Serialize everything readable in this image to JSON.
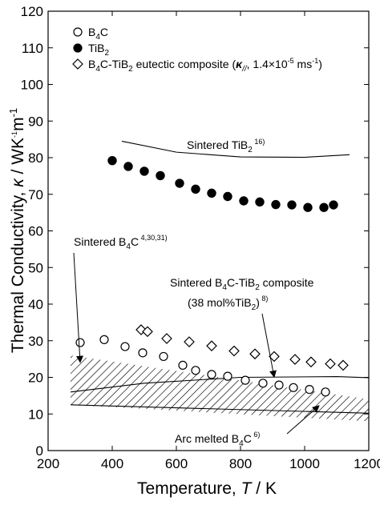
{
  "chart_data": {
    "type": "scatter",
    "xlabel": "Temperature, T / K",
    "ylabel": "Thermal Conductivity, κ / WK-1m-1",
    "xlim": [
      200,
      1200
    ],
    "ylim": [
      0,
      120
    ],
    "xticks": [
      200,
      400,
      600,
      800,
      1000,
      1200
    ],
    "yticks": [
      0,
      10,
      20,
      30,
      40,
      50,
      60,
      70,
      80,
      90,
      100,
      110,
      120
    ],
    "legend_position": "top-left",
    "series": [
      {
        "name": "B4C",
        "marker": "open-circle",
        "x": [
          300,
          375,
          440,
          495,
          560,
          620,
          660,
          710,
          760,
          815,
          870,
          920,
          965,
          1015,
          1065
        ],
        "y": [
          29.5,
          30.3,
          28.4,
          26.7,
          25.7,
          23.3,
          21.9,
          20.8,
          20.3,
          19.2,
          18.4,
          17.9,
          17.2,
          16.7,
          16.0
        ]
      },
      {
        "name": "TiB2",
        "marker": "filled-circle",
        "x": [
          400,
          450,
          500,
          550,
          610,
          660,
          710,
          760,
          810,
          860,
          910,
          960,
          1010,
          1060,
          1090
        ],
        "y": [
          79.2,
          77.6,
          76.3,
          75.1,
          73.0,
          71.4,
          70.3,
          69.4,
          68.2,
          67.9,
          67.2,
          67.1,
          66.4,
          66.4,
          67.1
        ]
      },
      {
        "name": "B4C-TiB2 eutectic composite (κ//, 1.4×10-5 ms-1)",
        "marker": "open-diamond",
        "x": [
          490,
          510,
          570,
          640,
          710,
          780,
          845,
          905,
          970,
          1020,
          1080,
          1120
        ],
        "y": [
          33.0,
          32.5,
          30.6,
          29.7,
          28.6,
          27.2,
          26.4,
          25.7,
          24.9,
          24.2,
          23.7,
          23.3
        ]
      }
    ],
    "reference_curves": [
      {
        "label": "Sintered TiB2 16)",
        "x": [
          430,
          600,
          800,
          1000,
          1140
        ],
        "y": [
          84.5,
          81.5,
          80.2,
          80.1,
          80.8
        ]
      },
      {
        "label": "Sintered B4C-TiB2 composite (38 mol%TiB2) 8)",
        "x": [
          270,
          500,
          800,
          1100,
          1200
        ],
        "y": [
          16.0,
          18.4,
          20.0,
          20.2,
          19.9
        ]
      }
    ],
    "hatched_bands": [
      {
        "label": "Sintered B4C 4,30,31)",
        "x": [
          270,
          1200
        ],
        "upper": [
          26.0,
          14.0
        ],
        "lower": [
          12.5,
          8.0
        ]
      }
    ],
    "arc_melted_curve": {
      "label": "Arc melted B4C 6)",
      "x": [
        270,
        1200
      ],
      "y": [
        12.5,
        10.2
      ]
    },
    "annotations": [
      {
        "text": "Sintered TiB2 16)",
        "arrow": false
      },
      {
        "text": "Sintered B4C 4,30,31)",
        "arrow": true
      },
      {
        "text": "Sintered B4C-TiB2 composite",
        "arrow": true
      },
      {
        "text": "(38 mol%TiB2) 8)",
        "arrow": false
      },
      {
        "text": "Arc melted B4C 6)",
        "arrow": true
      }
    ]
  },
  "text": {
    "ylabel_main": "Thermal Conductivity, ",
    "ylabel_kappa": "κ",
    "ylabel_unit": " / WK",
    "ylabel_sup1": "-1",
    "ylabel_m": "m",
    "ylabel_sup2": "-1",
    "xlabel_main": "Temperature, ",
    "xlabel_T": "T",
    "xlabel_unit": " / K",
    "legend_b4c_main": "B",
    "legend_b4c_sub": "4",
    "legend_b4c_end": "C",
    "legend_tib2_main": "TiB",
    "legend_tib2_sub": "2",
    "legend_eut_1": "B",
    "legend_eut_2": "4",
    "legend_eut_3": "C-TiB",
    "legend_eut_4": "2",
    "legend_eut_5": " eutectic composite (",
    "legend_eut_kappa": "κ",
    "legend_eut_par": "//",
    "legend_eut_6": ", 1.4×10",
    "legend_eut_7": "-5",
    "legend_eut_8": " ms",
    "legend_eut_9": "-1",
    "legend_eut_10": ")",
    "ann_tib2_a": "Sintered TiB",
    "ann_tib2_b": "2",
    "ann_tib2_c": " 16)",
    "ann_b4c_a": "Sintered B",
    "ann_b4c_b": "4",
    "ann_b4c_c": "C",
    "ann_b4c_d": " 4,30,31)",
    "ann_comp_a": "Sintered B",
    "ann_comp_b": "4",
    "ann_comp_c": "C-TiB",
    "ann_comp_d": "2",
    "ann_comp_e": " composite",
    "ann_comp2_a": "(38 mol%TiB",
    "ann_comp2_b": "2",
    "ann_comp2_c": ")",
    "ann_comp2_d": " 8)",
    "ann_arc_a": "Arc melted B",
    "ann_arc_b": "4",
    "ann_arc_c": "C",
    "ann_arc_d": " 6)"
  }
}
